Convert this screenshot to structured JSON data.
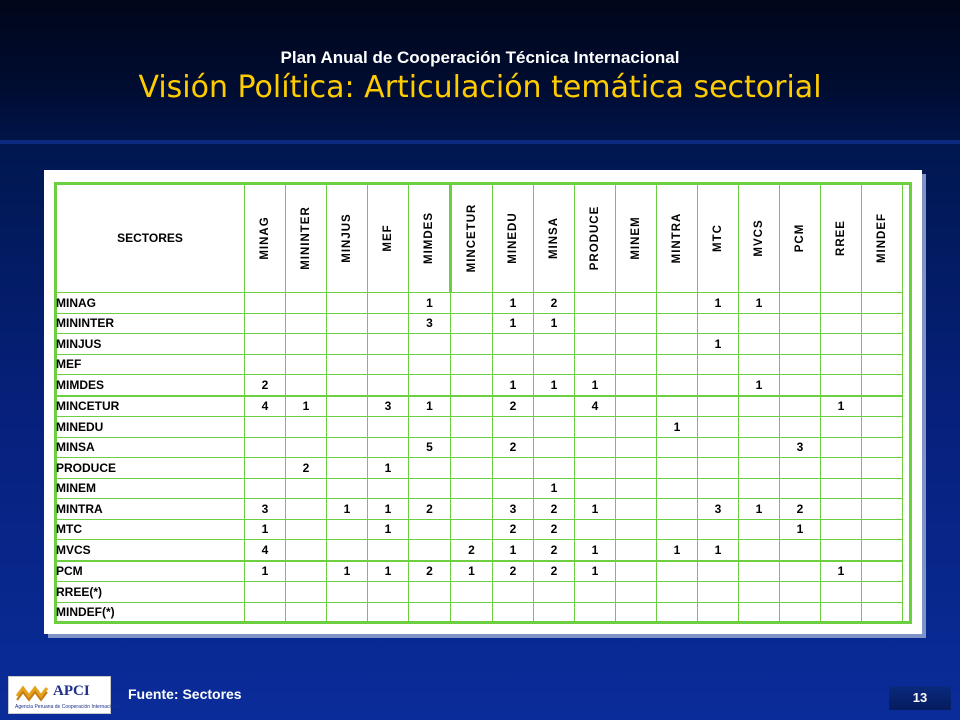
{
  "header": {
    "subtitle": "Plan Anual de Cooperación Técnica Internacional",
    "title": "Visión Política: Articulación temática sectorial"
  },
  "table": {
    "corner_label": "SECTORES",
    "columns": [
      "MINAG",
      "MININTER",
      "MINJUS",
      "MEF",
      "MIMDES",
      "MINCETUR",
      "MINEDU",
      "MINSA",
      "PRODUCE",
      "MINEM",
      "MINTRA",
      "MTC",
      "MVCS",
      "PCM",
      "RREE",
      "MINDEF"
    ],
    "rows": [
      {
        "label": "MINAG",
        "cells": [
          "",
          "",
          "",
          "",
          "1",
          "",
          "1",
          "2",
          "",
          "",
          "",
          "1",
          "1",
          "",
          "",
          ""
        ]
      },
      {
        "label": "MININTER",
        "cells": [
          "",
          "",
          "",
          "",
          "3",
          "",
          "1",
          "1",
          "",
          "",
          "",
          "",
          "",
          "",
          "",
          ""
        ]
      },
      {
        "label": "MINJUS",
        "cells": [
          "",
          "",
          "",
          "",
          "",
          "",
          "",
          "",
          "",
          "",
          "",
          "1",
          "",
          "",
          "",
          ""
        ]
      },
      {
        "label": "MEF",
        "cells": [
          "",
          "",
          "",
          "",
          "",
          "",
          "",
          "",
          "",
          "",
          "",
          "",
          "",
          "",
          "",
          ""
        ]
      },
      {
        "label": "MIMDES",
        "cells": [
          "2",
          "",
          "",
          "",
          "",
          "",
          "1",
          "1",
          "1",
          "",
          "",
          "",
          "1",
          "",
          "",
          ""
        ]
      },
      {
        "label": "MINCETUR",
        "cells": [
          "4",
          "1",
          "",
          "3",
          "1",
          "",
          "2",
          "",
          "4",
          "",
          "",
          "",
          "",
          "",
          "1",
          ""
        ]
      },
      {
        "label": "MINEDU",
        "cells": [
          "",
          "",
          "",
          "",
          "",
          "",
          "",
          "",
          "",
          "",
          "1",
          "",
          "",
          "",
          "",
          ""
        ]
      },
      {
        "label": "MINSA",
        "cells": [
          "",
          "",
          "",
          "",
          "5",
          "",
          "2",
          "",
          "",
          "",
          "",
          "",
          "",
          "3",
          "",
          ""
        ]
      },
      {
        "label": "PRODUCE",
        "cells": [
          "",
          "2",
          "",
          "1",
          "",
          "",
          "",
          "",
          "",
          "",
          "",
          "",
          "",
          "",
          "",
          ""
        ]
      },
      {
        "label": "MINEM",
        "cells": [
          "",
          "",
          "",
          "",
          "",
          "",
          "",
          "1",
          "",
          "",
          "",
          "",
          "",
          "",
          "",
          ""
        ]
      },
      {
        "label": "MINTRA",
        "cells": [
          "3",
          "",
          "1",
          "1",
          "2",
          "",
          "3",
          "2",
          "1",
          "",
          "",
          "3",
          "1",
          "2",
          "",
          ""
        ]
      },
      {
        "label": "MTC",
        "cells": [
          "1",
          "",
          "",
          "1",
          "",
          "",
          "2",
          "2",
          "",
          "",
          "",
          "",
          "",
          "1",
          "",
          ""
        ]
      },
      {
        "label": "MVCS",
        "cells": [
          "4",
          "",
          "",
          "",
          "",
          "2",
          "1",
          "2",
          "1",
          "",
          "1",
          "1",
          "",
          "",
          "",
          ""
        ]
      },
      {
        "label": "PCM",
        "cells": [
          "1",
          "",
          "1",
          "1",
          "2",
          "1",
          "2",
          "2",
          "1",
          "",
          "",
          "",
          "",
          "",
          "1",
          ""
        ]
      },
      {
        "label": "RREE(*)",
        "cells": [
          "",
          "",
          "",
          "",
          "",
          "",
          "",
          "",
          "",
          "",
          "",
          "",
          "",
          "",
          "",
          ""
        ]
      },
      {
        "label": "MINDEF(*)",
        "cells": [
          "",
          "",
          "",
          "",
          "",
          "",
          "",
          "",
          "",
          "",
          "",
          "",
          "",
          "",
          "",
          ""
        ]
      }
    ]
  },
  "footer": {
    "source": "Fuente: Sectores",
    "page_number": "13",
    "logo_text": "APCI",
    "logo_subtext": "Agencia Peruana de Cooperación Internacional"
  }
}
